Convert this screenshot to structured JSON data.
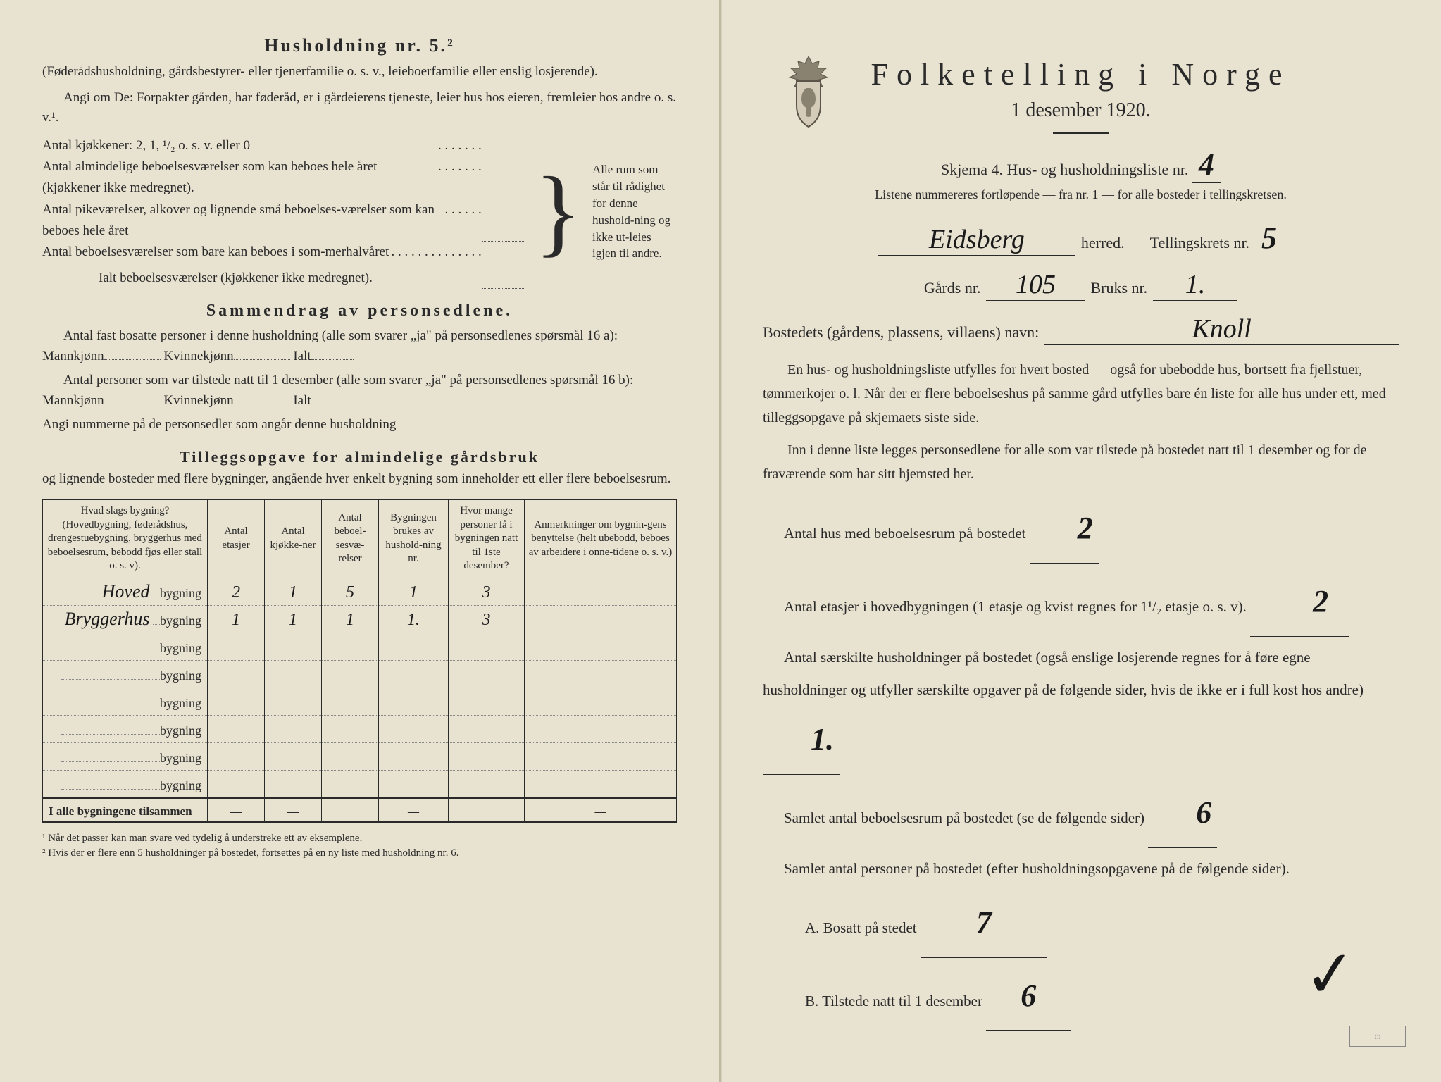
{
  "left": {
    "header": "Husholdning nr. 5.²",
    "intro1": "(Føderådshusholdning, gårdsbestyrer- eller tjenerfamilie o. s. v., leieboerfamilie eller enslig losjerende).",
    "intro2": "Angi om De: Forpakter gården, har føderåd, er i gårdeierens tjeneste, leier hus hos eieren, fremleier hos andre o. s. v.¹.",
    "kitchens": "Antal kjøkkener: 2, 1, ¹/₂ o. s. v. eller 0",
    "rooms1": "Antal almindelige beboelsesværelser som kan beboes hele året (kjøkkener ikke medregnet).",
    "rooms2": "Antal pikeværelser, alkover og lignende små beboelses-værelser som kan beboes hele året",
    "rooms3": "Antal beboelsesværelser som bare kan beboes i som-merhalvåret",
    "rooms_total": "Ialt beboelsesværelser (kjøkkener ikke medregnet).",
    "bracket_text": "Alle rum som står til rådighet for denne hushold-ning og ikke ut-leies igjen til andre.",
    "section2_title": "Sammendrag av personsedlene.",
    "s2_line1": "Antal fast bosatte personer i denne husholdning (alle som svarer „ja\" på personsedlenes spørsmål 16 a): Mannkjønn",
    "s2_kvinne": "Kvinnekjønn",
    "s2_ialt": "Ialt",
    "s2_line2": "Antal personer som var tilstede natt til 1 desember (alle som svarer „ja\" på personsedlenes spørsmål 16 b): Mannkjønn",
    "s2_line3": "Angi nummerne på de personsedler som angår denne husholdning",
    "section3_title": "Tilleggsopgave for almindelige gårdsbruk",
    "s3_intro": "og lignende bosteder med flere bygninger, angående hver enkelt bygning som inneholder ett eller flere beboelsesrum.",
    "table": {
      "headers": [
        "Hvad slags bygning?\n(Hovedbygning, føderådshus, drengestuebygning, bryggerhus med beboelsesrum, bebodd fjøs eller stall o. s. v).",
        "Antal etasjer",
        "Antal kjøkke-ner",
        "Antal beboel-sesvæ-relser",
        "Bygningen brukes av hushold-ning nr.",
        "Hvor mange personer lå i bygningen natt til 1ste desember?",
        "Anmerkninger om bygnin-gens benyttelse (helt ubebodd, beboes av arbeidere i onne-tidene o. s. v.)"
      ],
      "rows": [
        {
          "type": "Hoved",
          "suffix": "bygning",
          "etasjer": "2",
          "kjokkener": "1",
          "beboelse": "5",
          "husholdning": "1",
          "personer": "3",
          "anm": ""
        },
        {
          "type": "Bryggerhus",
          "suffix": "bygning",
          "etasjer": "1",
          "kjokkener": "1",
          "beboelse": "1",
          "husholdning": "1.",
          "personer": "3",
          "anm": ""
        },
        {
          "type": "",
          "suffix": "bygning",
          "etasjer": "",
          "kjokkener": "",
          "beboelse": "",
          "husholdning": "",
          "personer": "",
          "anm": ""
        },
        {
          "type": "",
          "suffix": "bygning",
          "etasjer": "",
          "kjokkener": "",
          "beboelse": "",
          "husholdning": "",
          "personer": "",
          "anm": ""
        },
        {
          "type": "",
          "suffix": "bygning",
          "etasjer": "",
          "kjokkener": "",
          "beboelse": "",
          "husholdning": "",
          "personer": "",
          "anm": ""
        },
        {
          "type": "",
          "suffix": "bygning",
          "etasjer": "",
          "kjokkener": "",
          "beboelse": "",
          "husholdning": "",
          "personer": "",
          "anm": ""
        },
        {
          "type": "",
          "suffix": "bygning",
          "etasjer": "",
          "kjokkener": "",
          "beboelse": "",
          "husholdning": "",
          "personer": "",
          "anm": ""
        },
        {
          "type": "",
          "suffix": "bygning",
          "etasjer": "",
          "kjokkener": "",
          "beboelse": "",
          "husholdning": "",
          "personer": "",
          "anm": ""
        }
      ],
      "total_label": "I alle bygningene tilsammen",
      "dash": "—"
    },
    "footnote1": "¹ Når det passer kan man svare ved tydelig å understreke ett av eksemplene.",
    "footnote2": "² Hvis der er flere enn 5 husholdninger på bostedet, fortsettes på en ny liste med husholdning nr. 6."
  },
  "right": {
    "title": "Folketelling i Norge",
    "date": "1 desember 1920.",
    "skjema": "Skjema 4.  Hus- og husholdningsliste nr.",
    "skjema_nr": "4",
    "sub": "Listene nummereres fortløpende — fra nr. 1 — for alle bosteder i tellingskretsen.",
    "herred_name": "Eidsberg",
    "herred_label": "herred.",
    "krets_label": "Tellingskrets nr.",
    "krets_nr": "5",
    "gards_label": "Gårds nr.",
    "gards_nr": "105",
    "bruks_label": "Bruks nr.",
    "bruks_nr": "1.",
    "bosted_label": "Bostedets (gårdens, plassens, villaens) navn:",
    "bosted_name": "Knoll",
    "para1": "En hus- og husholdningsliste utfylles for hvert bosted — også for ubebodde hus, bortsett fra fjellstuer, tømmerkojer o. l.  Når der er flere beboelseshus på samme gård utfylles bare én liste for alle hus under ett, med tilleggsopgave på skjemaets siste side.",
    "para2": "Inn i denne liste legges personsedlene for alle som var tilstede på bostedet natt til 1 desember og for de fraværende som har sitt hjemsted her.",
    "q1_label": "Antal hus med beboelsesrum på bostedet",
    "q1_val": "2",
    "q2_label_a": "Antal etasjer i hovedbygningen (1 etasje og kvist regnes for 1¹/₂ etasje o. s. v).",
    "q2_val": "2",
    "q3_label": "Antal særskilte husholdninger på bostedet (også enslige losjerende regnes for å føre egne husholdninger og utfyller særskilte opgaver på de følgende sider, hvis de ikke er i full kost hos andre)",
    "q3_val": "1.",
    "q4_label": "Samlet antal beboelsesrum på bostedet (se de følgende sider)",
    "q4_val": "6",
    "q5_label": "Samlet antal personer på bostedet (efter husholdningsopgavene på de følgende sider).",
    "qa_label": "A.  Bosatt på stedet",
    "qa_val": "7",
    "qb_label": "B.  Tilstede natt til 1 desember",
    "qb_val": "6"
  },
  "colors": {
    "paper": "#e8e2d0",
    "ink": "#2a2a2a",
    "handwriting": "#1a1a1a"
  }
}
